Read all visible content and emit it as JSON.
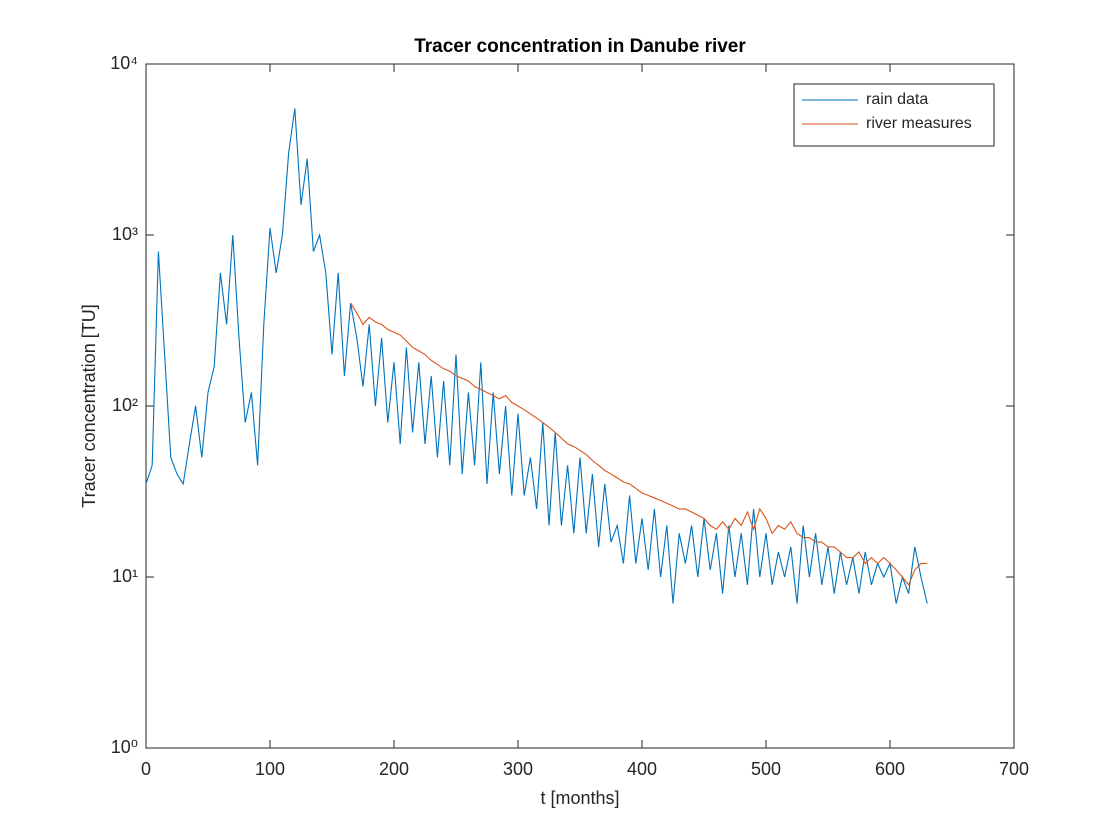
{
  "chart_data": {
    "type": "line",
    "title": "Tracer concentration in Danube river",
    "x_label": "t [months]",
    "y_label": "Tracer concentration [TU]",
    "xlim": [
      0,
      700
    ],
    "xticks": [
      0,
      100,
      200,
      300,
      400,
      500,
      600,
      700
    ],
    "ylim": [
      1,
      10000
    ],
    "yticks": [
      {
        "value": 1,
        "label": "10⁰"
      },
      {
        "value": 10,
        "label": "10¹"
      },
      {
        "value": 100,
        "label": "10²"
      },
      {
        "value": 1000,
        "label": "10³"
      },
      {
        "value": 10000,
        "label": "10⁴"
      }
    ],
    "y_scale": "log",
    "grid": false,
    "legend_location": "northeast",
    "series": [
      {
        "name": "rain data",
        "color": "#0072bd",
        "x": [
          0,
          5,
          10,
          15,
          20,
          25,
          30,
          35,
          40,
          45,
          50,
          55,
          60,
          65,
          70,
          75,
          80,
          85,
          90,
          95,
          100,
          105,
          110,
          115,
          120,
          125,
          130,
          135,
          140,
          145,
          150,
          155,
          160,
          165,
          170,
          175,
          180,
          185,
          190,
          195,
          200,
          205,
          210,
          215,
          220,
          225,
          230,
          235,
          240,
          245,
          250,
          255,
          260,
          265,
          270,
          275,
          280,
          285,
          290,
          295,
          300,
          305,
          310,
          315,
          320,
          325,
          330,
          335,
          340,
          345,
          350,
          355,
          360,
          365,
          370,
          375,
          380,
          385,
          390,
          395,
          400,
          405,
          410,
          415,
          420,
          425,
          430,
          435,
          440,
          445,
          450,
          455,
          460,
          465,
          470,
          475,
          480,
          485,
          490,
          495,
          500,
          505,
          510,
          515,
          520,
          525,
          530,
          535,
          540,
          545,
          550,
          555,
          560,
          565,
          570,
          575,
          580,
          585,
          590,
          595,
          600,
          605,
          610,
          615,
          620,
          625,
          630
        ],
        "values": [
          35,
          45,
          800,
          200,
          50,
          40,
          35,
          60,
          100,
          50,
          120,
          170,
          600,
          300,
          1000,
          250,
          80,
          120,
          45,
          300,
          1100,
          600,
          1000,
          3000,
          5500,
          1500,
          2800,
          800,
          1000,
          600,
          200,
          600,
          150,
          400,
          250,
          130,
          300,
          100,
          250,
          80,
          180,
          60,
          220,
          70,
          180,
          60,
          150,
          50,
          140,
          45,
          200,
          40,
          120,
          45,
          180,
          35,
          120,
          40,
          100,
          30,
          90,
          30,
          50,
          25,
          80,
          20,
          70,
          20,
          45,
          18,
          50,
          18,
          40,
          15,
          35,
          16,
          20,
          12,
          30,
          12,
          22,
          11,
          25,
          10,
          20,
          7,
          18,
          12,
          20,
          10,
          22,
          11,
          18,
          8,
          20,
          10,
          18,
          9,
          25,
          10,
          18,
          9,
          14,
          10,
          15,
          7,
          20,
          10,
          18,
          9,
          15,
          8,
          14,
          9,
          13,
          8,
          14,
          9,
          12,
          10,
          12,
          7,
          10,
          8,
          15,
          10,
          7
        ]
      },
      {
        "name": "river measures",
        "color": "#d95319",
        "x": [
          165,
          170,
          175,
          180,
          185,
          190,
          195,
          200,
          205,
          210,
          215,
          220,
          225,
          230,
          235,
          240,
          245,
          250,
          255,
          260,
          265,
          270,
          275,
          280,
          285,
          290,
          295,
          300,
          305,
          310,
          315,
          320,
          325,
          330,
          335,
          340,
          345,
          350,
          355,
          360,
          365,
          370,
          375,
          380,
          385,
          390,
          395,
          400,
          405,
          410,
          415,
          420,
          425,
          430,
          435,
          440,
          445,
          450,
          455,
          460,
          465,
          470,
          475,
          480,
          485,
          490,
          495,
          500,
          505,
          510,
          515,
          520,
          525,
          530,
          535,
          540,
          545,
          550,
          555,
          560,
          565,
          570,
          575,
          580,
          585,
          590,
          595,
          600,
          605,
          610,
          615,
          620,
          625,
          630
        ],
        "values": [
          400,
          350,
          300,
          330,
          310,
          300,
          280,
          270,
          260,
          240,
          220,
          210,
          200,
          185,
          175,
          165,
          160,
          150,
          145,
          140,
          130,
          125,
          120,
          115,
          110,
          115,
          105,
          100,
          95,
          90,
          85,
          80,
          75,
          70,
          65,
          60,
          58,
          55,
          52,
          48,
          45,
          42,
          40,
          38,
          36,
          35,
          33,
          31,
          30,
          29,
          28,
          27,
          26,
          25,
          25,
          24,
          23,
          22,
          20,
          19,
          21,
          19,
          22,
          20,
          24,
          19,
          25,
          22,
          18,
          20,
          19,
          21,
          18,
          17,
          17,
          16,
          16,
          15,
          15,
          14,
          13,
          13,
          14,
          12,
          13,
          12,
          13,
          12,
          11,
          10,
          9,
          11,
          12,
          12
        ]
      }
    ]
  }
}
